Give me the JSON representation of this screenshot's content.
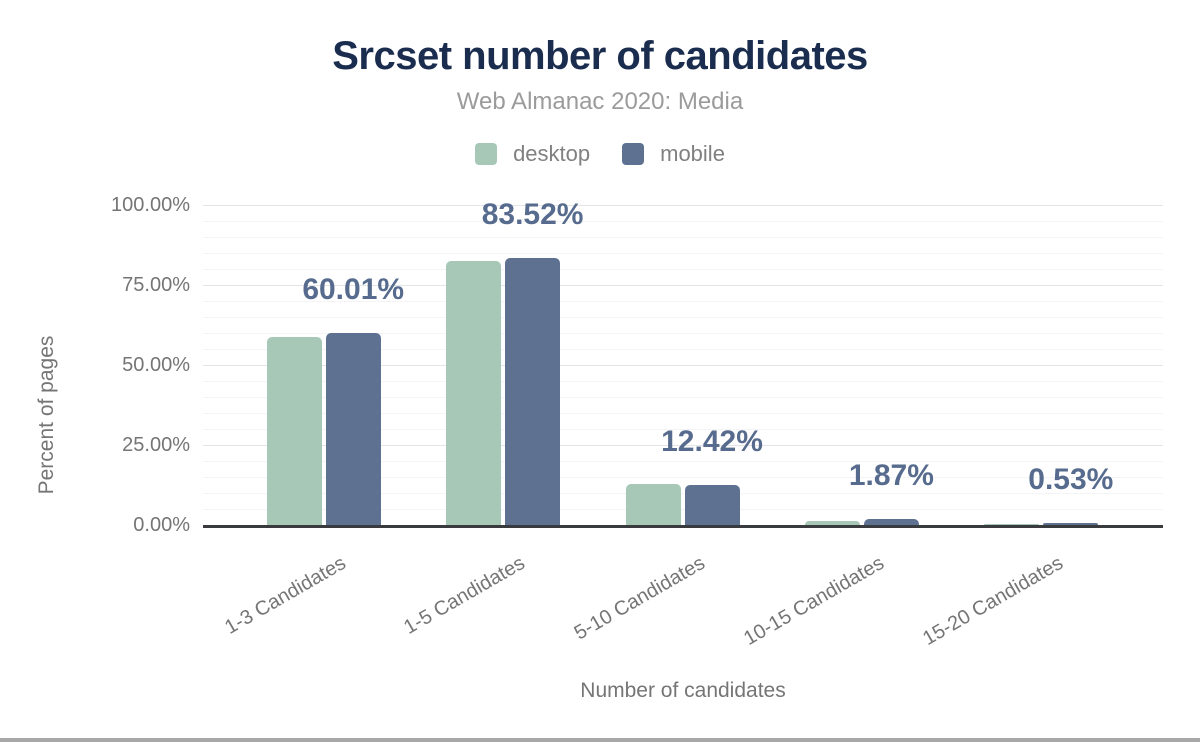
{
  "chart": {
    "title": "Srcset number of candidates",
    "subtitle": "Web Almanac 2020: Media"
  },
  "chart_data": {
    "type": "bar",
    "title": "Srcset number of candidates",
    "subtitle": "Web Almanac 2020: Media",
    "categories": [
      "1-3 Candidates",
      "1-5 Candidates",
      "5-10 Candidates",
      "10-15 Candidates",
      "15-20 Candidates"
    ],
    "series": [
      {
        "name": "desktop",
        "color": "#a7c8b7",
        "values": [
          58.9,
          82.4,
          12.9,
          1.4,
          0.4
        ]
      },
      {
        "name": "mobile",
        "color": "#5e7190",
        "values": [
          60.01,
          83.52,
          12.42,
          1.87,
          0.53
        ]
      }
    ],
    "data_labels": [
      "60.01%",
      "83.52%",
      "12.42%",
      "1.87%",
      "0.53%"
    ],
    "data_labels_series": "mobile",
    "xlabel": "Number of candidates",
    "ylabel": "Percent of pages",
    "ylim": [
      0,
      100
    ],
    "yticks": [
      "0.00%",
      "25.00%",
      "50.00%",
      "75.00%",
      "100.00%"
    ],
    "ytick_values": [
      0,
      25,
      50,
      75,
      100
    ],
    "grid": {
      "major_step": 25,
      "minor_step": 5,
      "grid_on": true
    },
    "legend_position": "top"
  },
  "colors": {
    "background": "#ffffff",
    "title": "#1b2d4f",
    "subtitle": "#9b9b9b",
    "legend_text": "#808080",
    "axis_text": "#757575",
    "data_label": "#566b8d",
    "grid_major": "#e4e4e7",
    "grid_minor": "#f4f4f6",
    "baseline": "#3a3b3f",
    "scrollbar": "#a8a8a8"
  }
}
